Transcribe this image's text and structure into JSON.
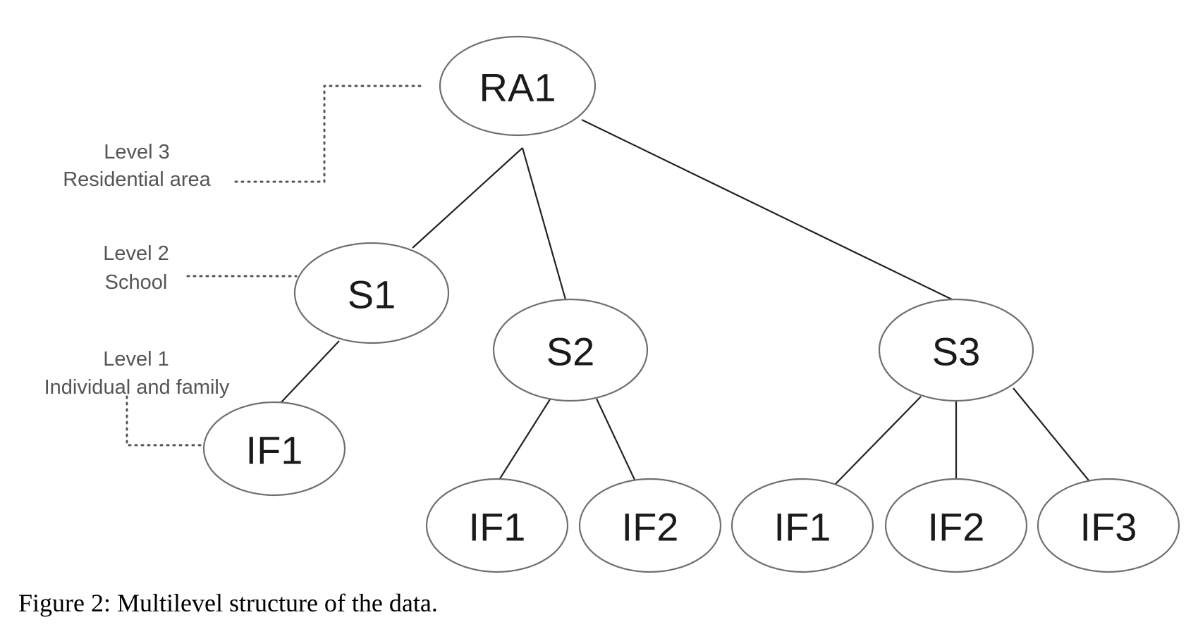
{
  "nodes": {
    "ra1": "RA1",
    "s1": "S1",
    "s2": "S2",
    "s3": "S3",
    "s1_if1": "IF1",
    "s2_if1": "IF1",
    "s2_if2": "IF2",
    "s3_if1": "IF1",
    "s3_if2": "IF2",
    "s3_if3": "IF3"
  },
  "levels": {
    "level3": {
      "line1": "Level 3",
      "line2": "Residential area"
    },
    "level2": {
      "line1": "Level 2",
      "line2": "School"
    },
    "level1": {
      "line1": "Level 1",
      "line2": "Individual and family"
    }
  },
  "caption": "Figure 2: Multilevel structure of the data."
}
